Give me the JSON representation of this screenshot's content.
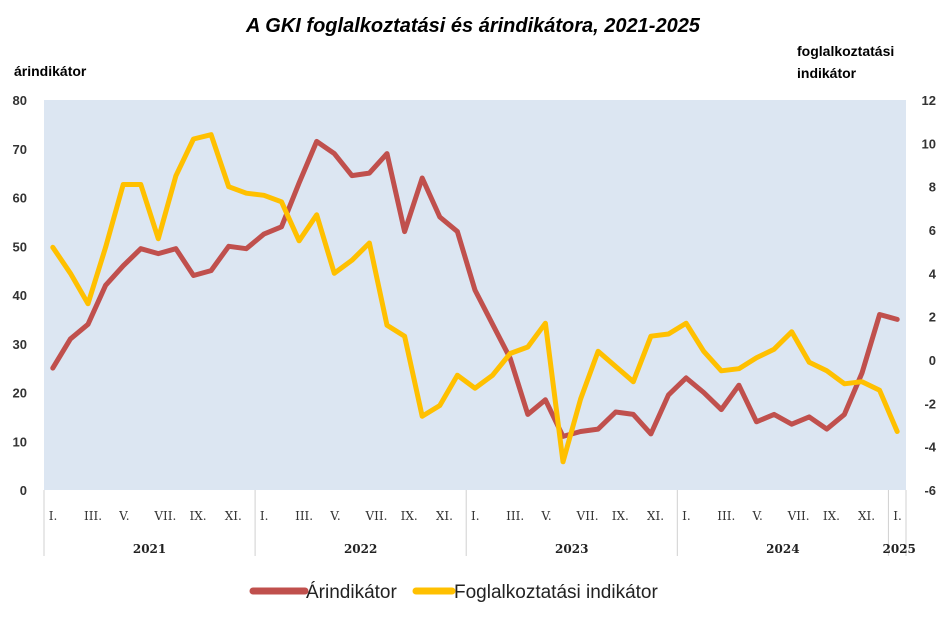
{
  "chart_data": {
    "type": "line",
    "title": "A GKI foglalkoztatási és árindikátora, 2021-2025",
    "y_left_label": "árindikátor",
    "y_right_label_line1": "foglalkoztatási",
    "y_right_label_line2": "indikátor",
    "y_left_ticks": [
      "80",
      "70",
      "60",
      "50",
      "40",
      "30",
      "20",
      "10",
      "0"
    ],
    "y_right_ticks": [
      "12",
      "10",
      "8",
      "6",
      "4",
      "2",
      "0",
      "-2",
      "-4",
      "-6"
    ],
    "ylim_left": [
      0,
      80
    ],
    "ylim_right": [
      -6,
      12
    ],
    "month_labels": [
      "I.",
      "III.",
      "V.",
      "VII.",
      "IX.",
      "XI.",
      "I.",
      "III.",
      "V.",
      "VII.",
      "IX.",
      "XI.",
      "I.",
      "III.",
      "V.",
      "VII.",
      "IX.",
      "XI.",
      "I.",
      "III.",
      "V.",
      "VII.",
      "IX.",
      "XI.",
      "I."
    ],
    "years": [
      "2021",
      "2022",
      "2023",
      "2024",
      "2025"
    ],
    "colors": {
      "price": "#c0504d",
      "employment": "#ffc000",
      "plot_bg": "#dce6f2"
    },
    "series": [
      {
        "name": "Árindikátor",
        "axis": "left",
        "values": [
          25,
          31,
          34,
          42,
          46,
          49.5,
          48.5,
          49.5,
          44,
          45,
          50,
          49.5,
          52.5,
          54,
          63,
          71.5,
          69,
          64.5,
          65,
          69,
          53,
          64,
          56,
          53,
          41,
          34,
          27,
          15.5,
          18.5,
          11,
          12,
          12.5,
          16,
          15.5,
          11.5,
          19.5,
          23,
          20,
          16.5,
          21.5,
          14,
          15.5,
          13.5,
          15,
          12.5,
          15.5,
          24,
          36,
          35
        ]
      },
      {
        "name": "Foglalkoztatási indikátor",
        "axis": "right",
        "values": [
          5.2,
          4.0,
          2.6,
          5.2,
          8.1,
          8.1,
          5.6,
          8.5,
          10.2,
          10.4,
          8.0,
          7.7,
          7.6,
          7.3,
          5.5,
          6.7,
          4.0,
          4.6,
          5.4,
          1.6,
          1.1,
          -2.6,
          -2.1,
          -0.7,
          -1.3,
          -0.7,
          0.3,
          0.6,
          1.7,
          -4.7,
          -1.8,
          0.4,
          -0.3,
          -1.0,
          1.1,
          1.2,
          1.7,
          0.4,
          -0.5,
          -0.4,
          0.1,
          0.5,
          1.3,
          -0.1,
          -0.5,
          -1.1,
          -1.0,
          -1.4,
          -3.3
        ]
      }
    ],
    "legend": [
      "Árindikátor",
      "Foglalkoztatási indikátor"
    ],
    "legend_position": "bottom"
  }
}
